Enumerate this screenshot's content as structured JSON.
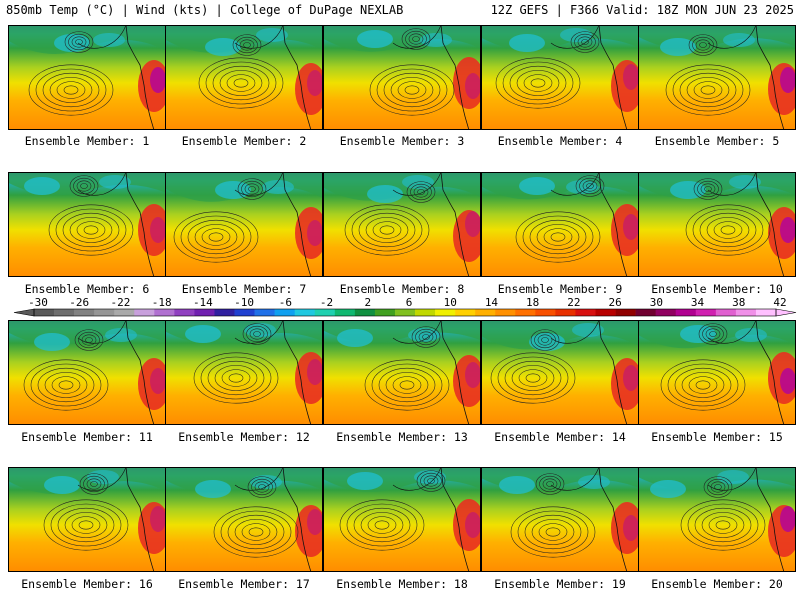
{
  "header": {
    "left": "850mb Temp (°C) | Wind (kts) | College of DuPage NEXLAB",
    "right": "12Z GEFS | F366 Valid: 18Z MON JUN 23 2025"
  },
  "panels": [
    "Ensemble Member: 1",
    "Ensemble Member: 2",
    "Ensemble Member: 3",
    "Ensemble Member: 4",
    "Ensemble Member: 5",
    "Ensemble Member: 6",
    "Ensemble Member: 7",
    "Ensemble Member: 8",
    "Ensemble Member: 9",
    "Ensemble Member: 10",
    "Ensemble Member: 11",
    "Ensemble Member: 12",
    "Ensemble Member: 13",
    "Ensemble Member: 14",
    "Ensemble Member: 15",
    "Ensemble Member: 16",
    "Ensemble Member: 17",
    "Ensemble Member: 18",
    "Ensemble Member: 19",
    "Ensemble Member: 20"
  ],
  "colorbar": {
    "labels": [
      "-30",
      "-26",
      "-22",
      "-18",
      "-14",
      "-10",
      "-6",
      "-2",
      "2",
      "6",
      "10",
      "14",
      "18",
      "22",
      "26",
      "30",
      "34",
      "38",
      "42"
    ],
    "colors": [
      "#5a5a5a",
      "#6e6e6e",
      "#828282",
      "#969696",
      "#aaaaaa",
      "#c8a0dc",
      "#b070d0",
      "#9040c0",
      "#7020b0",
      "#3020a0",
      "#2040d0",
      "#2070e8",
      "#10a0f0",
      "#20c8e0",
      "#20d0b0",
      "#10b870",
      "#109040",
      "#40a020",
      "#80c020",
      "#c0d800",
      "#f0f000",
      "#ffd000",
      "#ffb000",
      "#ff9000",
      "#ff7000",
      "#f85000",
      "#e83000",
      "#d81010",
      "#b80000",
      "#900000",
      "#700030",
      "#900060",
      "#b00090",
      "#d020b0",
      "#e060d0",
      "#f090e8",
      "#ffc0ff"
    ]
  }
}
